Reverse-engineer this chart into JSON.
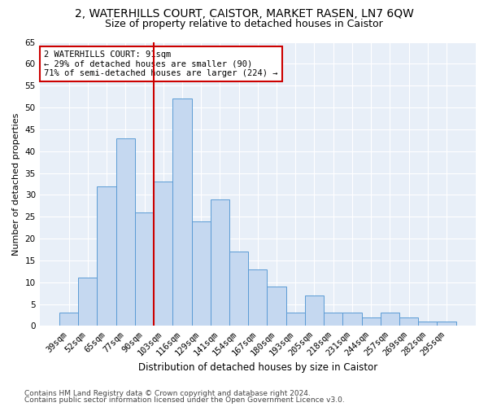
{
  "title_line1": "2, WATERHILLS COURT, CAISTOR, MARKET RASEN, LN7 6QW",
  "title_line2": "Size of property relative to detached houses in Caistor",
  "xlabel": "Distribution of detached houses by size in Caistor",
  "ylabel": "Number of detached properties",
  "categories": [
    "39sqm",
    "52sqm",
    "65sqm",
    "77sqm",
    "90sqm",
    "103sqm",
    "116sqm",
    "129sqm",
    "141sqm",
    "154sqm",
    "167sqm",
    "180sqm",
    "193sqm",
    "205sqm",
    "218sqm",
    "231sqm",
    "244sqm",
    "257sqm",
    "269sqm",
    "282sqm",
    "295sqm"
  ],
  "values": [
    3,
    11,
    32,
    43,
    26,
    33,
    52,
    24,
    29,
    17,
    13,
    9,
    3,
    7,
    3,
    3,
    2,
    3,
    2,
    1,
    1
  ],
  "bar_color": "#c5d8f0",
  "bar_edge_color": "#5b9bd5",
  "vline_color": "#cc0000",
  "ylim": [
    0,
    65
  ],
  "yticks": [
    0,
    5,
    10,
    15,
    20,
    25,
    30,
    35,
    40,
    45,
    50,
    55,
    60,
    65
  ],
  "annotation_text": "2 WATERHILLS COURT: 91sqm\n← 29% of detached houses are smaller (90)\n71% of semi-detached houses are larger (224) →",
  "annotation_box_color": "#ffffff",
  "annotation_box_edge": "#cc0000",
  "footnote_line1": "Contains HM Land Registry data © Crown copyright and database right 2024.",
  "footnote_line2": "Contains public sector information licensed under the Open Government Licence v3.0.",
  "background_color": "#e8eff8",
  "fig_background": "#ffffff",
  "grid_color": "#ffffff",
  "title1_fontsize": 10,
  "title2_fontsize": 9,
  "xlabel_fontsize": 8.5,
  "ylabel_fontsize": 8,
  "tick_fontsize": 7.5,
  "annotation_fontsize": 7.5,
  "footnote_fontsize": 6.5
}
